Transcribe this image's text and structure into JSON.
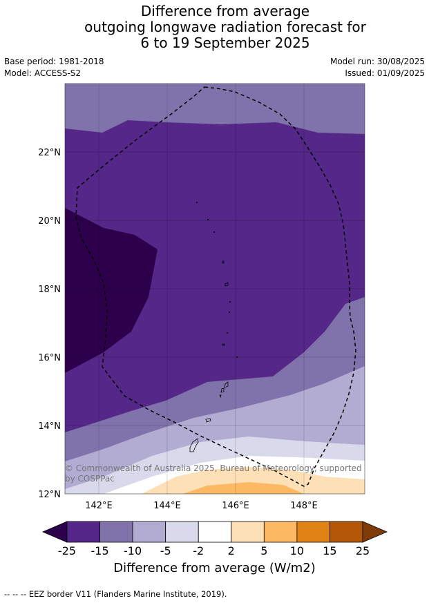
{
  "header": {
    "title_lines": [
      "Difference from average",
      "outgoing longwave radiation forecast for",
      "6 to 19 September 2025"
    ],
    "base_period": "Base period: 1981-2018",
    "model": "Model: ACCESS-S2",
    "model_run": "Model run: 30/08/2025",
    "issued": "Issued: 01/09/2025"
  },
  "map": {
    "lat_labels": [
      "22°N",
      "20°N",
      "18°N",
      "16°N",
      "14°N",
      "12°N"
    ],
    "lon_labels": [
      "142°E",
      "144°E",
      "146°E",
      "148°E"
    ],
    "credit": "© Commonwealth of Australia 2025, Bureau of Meteorology, supported by COSPPac"
  },
  "colorbar": {
    "ticks": [
      "-25",
      "-15",
      "-10",
      "-5",
      "-2",
      "2",
      "5",
      "10",
      "15",
      "25"
    ],
    "colors": [
      "#2d004b",
      "#542788",
      "#8073ac",
      "#b2abd2",
      "#d8daeb",
      "#ffffff",
      "#fee0b6",
      "#fdb863",
      "#e08214",
      "#b35806",
      "#7f3b08"
    ],
    "label": "Difference from average (W/m2)"
  },
  "footnote": "-- -- -- EEZ border V11 (Flanders Marine Institute, 2019)."
}
